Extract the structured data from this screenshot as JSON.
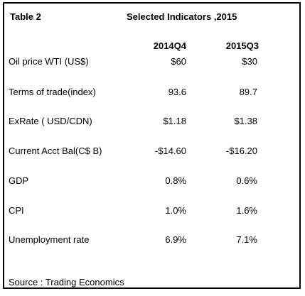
{
  "table": {
    "label": "Table  2",
    "title": "Selected Indicators ,2015",
    "columns": [
      "2014Q4",
      "2015Q3"
    ],
    "rows": [
      {
        "label": "Oil price WTI (US$)",
        "values": [
          "$60",
          "$30"
        ]
      },
      {
        "label": "Terms of trade(index)",
        "values": [
          "93.6",
          "89.7"
        ]
      },
      {
        "label": "ExRate ( USD/CDN)",
        "values": [
          "$1.18",
          "$1.38"
        ]
      },
      {
        "label": "Current Acct Bal(C$ B)",
        "values": [
          "-$14.60",
          "-$16.20"
        ]
      },
      {
        "label": "GDP",
        "values": [
          "0.8%",
          "0.6%"
        ]
      },
      {
        "label": "CPI",
        "values": [
          "1.0%",
          "1.6%"
        ]
      },
      {
        "label": "Unemployment rate",
        "values": [
          "6.9%",
          "7.1%"
        ]
      }
    ],
    "source": "Source : Trading Economics"
  }
}
